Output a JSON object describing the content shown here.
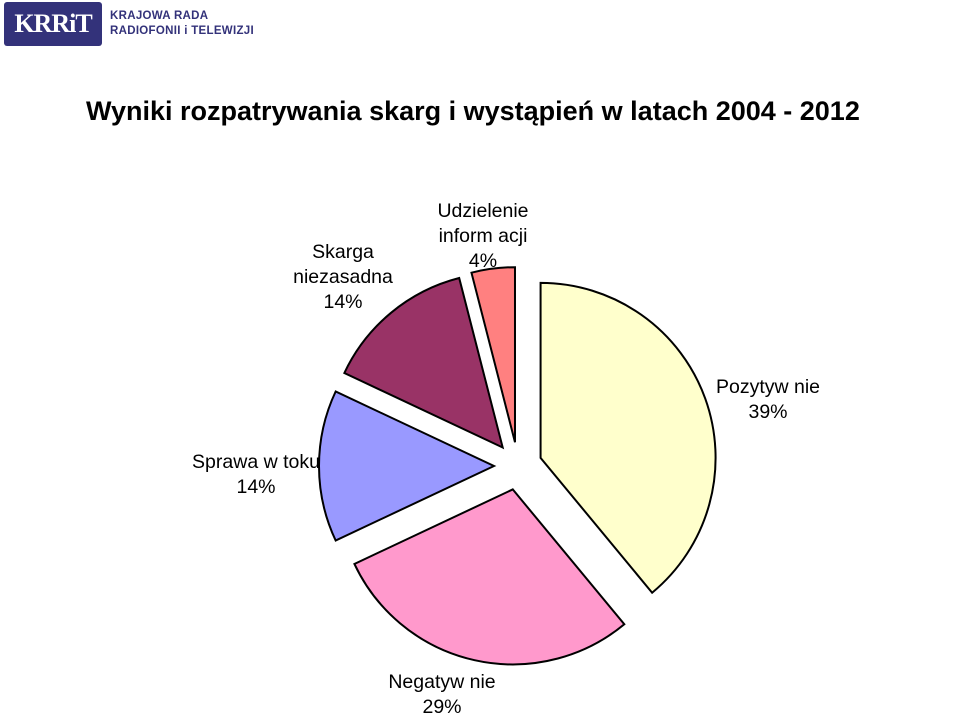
{
  "header": {
    "logo_mark": "KRRiT",
    "logo_line1": "KRAJOWA RADA",
    "logo_line2": "RADIOFONII i TELEWIZJI"
  },
  "chart_data": {
    "type": "pie",
    "title": "Wyniki rozpatrywania skarg i wystąpień w latach 2004 - 2012",
    "slices": [
      {
        "name": "Pozytywnie",
        "label": "Pozytyw nie",
        "value": 39,
        "pct_label": "39%",
        "color": "#ffffcc"
      },
      {
        "name": "Negatywnie",
        "label": "Negatyw nie",
        "value": 29,
        "pct_label": "29%",
        "color": "#ff99cc"
      },
      {
        "name": "Sprawa w toku",
        "label": "Sprawa w toku",
        "value": 14,
        "pct_label": "14%",
        "color": "#9999ff"
      },
      {
        "name": "Skarga niezasadna",
        "label": "Skarga\nniezasadna",
        "value": 14,
        "pct_label": "14%",
        "color": "#993366"
      },
      {
        "name": "Udzielenie informacji",
        "label": "Udzielenie\ninform acji",
        "value": 4,
        "pct_label": "4%",
        "color": "#ff8080"
      }
    ],
    "exploded": true,
    "legend": "none"
  }
}
